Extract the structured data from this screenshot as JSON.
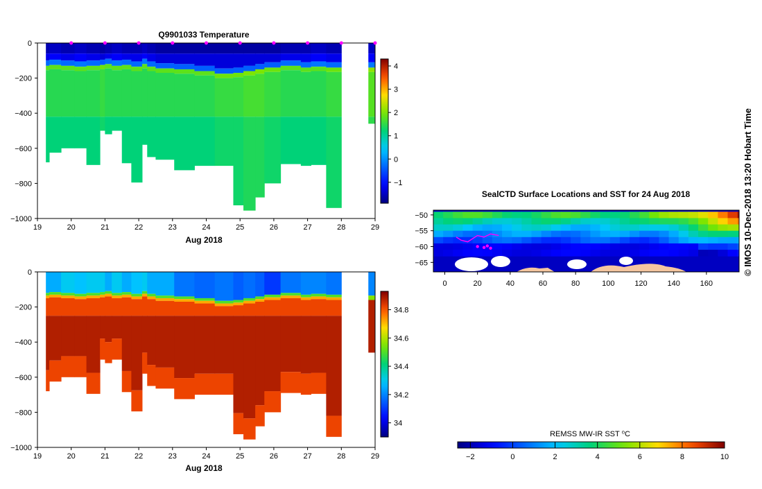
{
  "credit": "© IMOS 10-Dec-2018 13:20 Hobart Time",
  "chart_data": [
    {
      "id": "temperature-section",
      "type": "heatmap",
      "title": "Q9901033  Temperature",
      "xlabel": "Aug 2018",
      "ylabel": "",
      "xlim": [
        19,
        29
      ],
      "ylim": [
        -1000,
        0
      ],
      "x_ticks": [
        19,
        20,
        21,
        22,
        23,
        24,
        25,
        26,
        27,
        28,
        29
      ],
      "y_ticks": [
        0,
        -200,
        -400,
        -600,
        -800,
        -1000
      ],
      "profile_markers_x": [
        20,
        21,
        22,
        23,
        24,
        25,
        26,
        27,
        28,
        29
      ],
      "colorbar": {
        "min": -1.9,
        "max": 4.3,
        "ticks": [
          -1,
          0,
          1,
          2,
          3,
          4
        ]
      },
      "profiles": [
        {
          "x0": 19.25,
          "x1": 19.35,
          "thermo": -130,
          "max": -680,
          "surf": -1.6,
          "deep": 1.3
        },
        {
          "x0": 19.35,
          "x1": 19.7,
          "thermo": -125,
          "max": -625,
          "surf": -1.5,
          "deep": 1.3
        },
        {
          "x0": 19.7,
          "x1": 20.1,
          "thermo": -130,
          "max": -600,
          "surf": -1.6,
          "deep": 1.3
        },
        {
          "x0": 20.1,
          "x1": 20.45,
          "thermo": -135,
          "max": -600,
          "surf": -1.5,
          "deep": 1.3
        },
        {
          "x0": 20.45,
          "x1": 20.85,
          "thermo": -130,
          "max": -695,
          "surf": -1.6,
          "deep": 1.3
        },
        {
          "x0": 20.85,
          "x1": 21.0,
          "thermo": -125,
          "max": -500,
          "surf": -1.7,
          "deep": 1.4
        },
        {
          "x0": 21.0,
          "x1": 21.2,
          "thermo": -120,
          "max": -520,
          "surf": -1.6,
          "deep": 1.3
        },
        {
          "x0": 21.2,
          "x1": 21.5,
          "thermo": -130,
          "max": -500,
          "surf": -1.5,
          "deep": 1.3
        },
        {
          "x0": 21.5,
          "x1": 21.78,
          "thermo": -125,
          "max": -685,
          "surf": -1.6,
          "deep": 1.3
        },
        {
          "x0": 21.78,
          "x1": 22.1,
          "thermo": -135,
          "max": -795,
          "surf": -1.6,
          "deep": 1.3
        },
        {
          "x0": 22.1,
          "x1": 22.25,
          "thermo": -120,
          "max": -580,
          "surf": -1.5,
          "deep": 1.3
        },
        {
          "x0": 22.25,
          "x1": 22.5,
          "thermo": -135,
          "max": -650,
          "surf": -1.6,
          "deep": 1.3
        },
        {
          "x0": 22.5,
          "x1": 23.05,
          "thermo": -145,
          "max": -665,
          "surf": -1.7,
          "deep": 1.3
        },
        {
          "x0": 23.05,
          "x1": 23.65,
          "thermo": -150,
          "max": -725,
          "surf": -1.7,
          "deep": 1.3
        },
        {
          "x0": 23.65,
          "x1": 24.25,
          "thermo": -160,
          "max": -700,
          "surf": -1.7,
          "deep": 1.3
        },
        {
          "x0": 24.25,
          "x1": 24.8,
          "thermo": -175,
          "max": -700,
          "surf": -1.7,
          "deep": 1.4
        },
        {
          "x0": 24.8,
          "x1": 25.1,
          "thermo": -170,
          "max": -925,
          "surf": -1.7,
          "deep": 1.4
        },
        {
          "x0": 25.1,
          "x1": 25.45,
          "thermo": -160,
          "max": -955,
          "surf": -1.7,
          "deep": 1.5
        },
        {
          "x0": 25.45,
          "x1": 25.72,
          "thermo": -150,
          "max": -880,
          "surf": -1.7,
          "deep": 1.5
        },
        {
          "x0": 25.72,
          "x1": 26.2,
          "thermo": -140,
          "max": -800,
          "surf": -1.7,
          "deep": 1.4
        },
        {
          "x0": 26.2,
          "x1": 26.8,
          "thermo": -130,
          "max": -690,
          "surf": -1.6,
          "deep": 1.3
        },
        {
          "x0": 26.8,
          "x1": 27.1,
          "thermo": -140,
          "max": -700,
          "surf": -1.6,
          "deep": 1.3
        },
        {
          "x0": 27.1,
          "x1": 27.55,
          "thermo": -135,
          "max": -695,
          "surf": -1.5,
          "deep": 1.3
        },
        {
          "x0": 27.55,
          "x1": 28.0,
          "thermo": -140,
          "max": -940,
          "surf": -1.6,
          "deep": 1.4
        }
      ],
      "partial_profile": {
        "x0": 28.8,
        "x1": 29.0,
        "thermo": -140,
        "max": -460,
        "surf": -1.5,
        "deep": 1.6
      }
    },
    {
      "id": "salinity-section",
      "type": "heatmap",
      "title": "",
      "xlabel": "Aug 2018",
      "ylabel": "",
      "xlim": [
        19,
        29
      ],
      "ylim": [
        -1000,
        0
      ],
      "x_ticks": [
        19,
        20,
        21,
        22,
        23,
        24,
        25,
        26,
        27,
        28,
        29
      ],
      "y_ticks": [
        0,
        -200,
        -400,
        -600,
        -800,
        -1000
      ],
      "colorbar": {
        "min": 33.9,
        "max": 34.93,
        "ticks": [
          34,
          34.2,
          34.4,
          34.6,
          34.8
        ]
      },
      "surface_values": [
        34.25,
        34.25,
        34.3,
        34.28,
        34.3,
        34.3,
        34.25,
        34.3,
        34.25,
        34.28,
        34.3,
        34.25,
        34.25,
        34.18,
        34.16,
        34.18,
        34.15,
        34.17,
        34.15,
        34.1,
        34.18,
        34.2,
        34.2,
        34.18
      ],
      "deep_value": 34.88
    },
    {
      "id": "sst-map",
      "type": "heatmap",
      "title": "SealCTD Surface Locations and SST for 24 Aug 2018",
      "xlabel": "",
      "ylabel": "",
      "xlim": [
        -7,
        180
      ],
      "ylim": [
        -68,
        -48.5
      ],
      "x_ticks": [
        0,
        20,
        40,
        60,
        80,
        100,
        120,
        140,
        160
      ],
      "y_ticks": [
        -50,
        -55,
        -60,
        -65
      ],
      "colorbar_label": "REMSS MW-IR SST ⁰C",
      "colorbar": {
        "min": -2.6,
        "max": 10,
        "ticks": [
          -2,
          0,
          2,
          4,
          6,
          8,
          10
        ]
      },
      "track": [
        [
          7,
          -57
        ],
        [
          10,
          -58
        ],
        [
          14,
          -58.5
        ],
        [
          17,
          -57.5
        ],
        [
          20,
          -56.5
        ],
        [
          24,
          -57
        ],
        [
          28,
          -56
        ],
        [
          33,
          -56.5
        ]
      ],
      "track_end": [
        [
          20,
          -60
        ],
        [
          24,
          -60.3
        ],
        [
          26,
          -59.8
        ],
        [
          28,
          -60.5
        ]
      ]
    }
  ]
}
